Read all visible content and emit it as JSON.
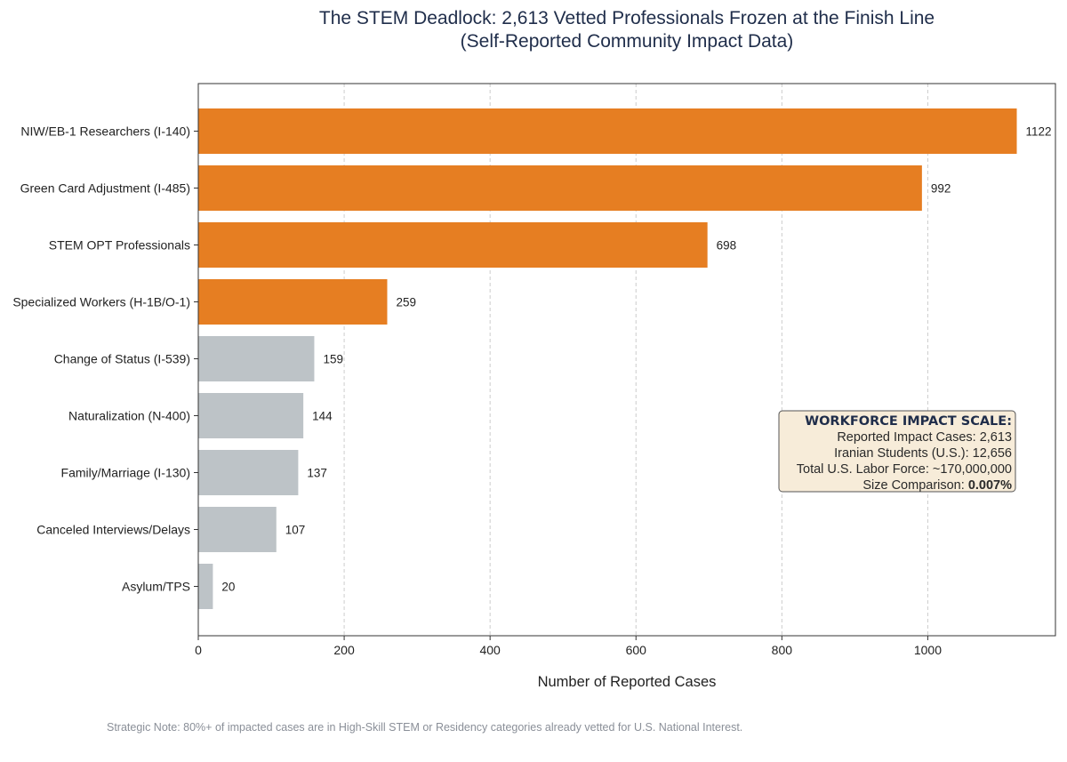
{
  "chart_data": {
    "type": "bar",
    "orientation": "horizontal",
    "title": "The STEM Deadlock: 2,613 Vetted Professionals Frozen at the Finish Line",
    "subtitle": "(Self-Reported Community Impact Data)",
    "xlabel": "Number of Reported Cases",
    "ylabel": "",
    "xlim": [
      0,
      1175
    ],
    "xticks": [
      0,
      200,
      400,
      600,
      800,
      1000
    ],
    "grid": "vertical-dashed",
    "categories": [
      "NIW/EB-1 Researchers (I-140)",
      "Green Card Adjustment (I-485)",
      "STEM OPT Professionals",
      "Specialized Workers (H-1B/O-1)",
      "Change of Status (I-539)",
      "Naturalization (N-400)",
      "Family/Marriage (I-130)",
      "Canceled Interviews/Delays",
      "Asylum/TPS"
    ],
    "values": [
      1122,
      992,
      698,
      259,
      159,
      144,
      137,
      107,
      20
    ],
    "highlight": [
      true,
      true,
      true,
      true,
      false,
      false,
      false,
      false,
      false
    ],
    "colors": {
      "highlight": "#e67e22",
      "other": "#bdc3c7"
    },
    "annotation_box": {
      "heading": "WORKFORCE IMPACT SCALE:",
      "lines": [
        "Reported Impact Cases: 2,613",
        "Iranian Students (U.S.): 12,656",
        "Total U.S. Labor Force: ~170,000,000"
      ],
      "comparison_label": "Size Comparison: ",
      "comparison_value": "0.007%",
      "placement": "right-middle"
    },
    "footnote": "Strategic Note: 80%+ of impacted cases are in High-Skill STEM or Residency categories already vetted for U.S. National Interest."
  }
}
